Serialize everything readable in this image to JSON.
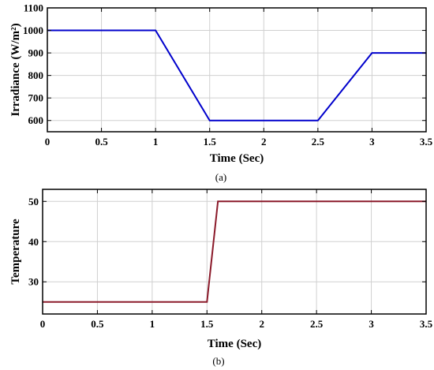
{
  "chart_data": [
    {
      "type": "line",
      "caption": "(a)",
      "xlabel": "Time (Sec)",
      "ylabel": "Irradiance (W/m²)",
      "xlim": [
        0,
        3.5
      ],
      "ylim": [
        550,
        1100
      ],
      "xticks": [
        0,
        0.5,
        1,
        1.5,
        2,
        2.5,
        3,
        3.5
      ],
      "xtick_labels": [
        "0",
        "0.5",
        "1",
        "1.5",
        "2",
        "2.5",
        "3",
        "3.5"
      ],
      "yticks": [
        600,
        700,
        800,
        900,
        1000,
        1100
      ],
      "ytick_labels": [
        "600",
        "700",
        "800",
        "900",
        "1000",
        "1100"
      ],
      "grid": true,
      "color": "#0000cc",
      "series": [
        {
          "x": [
            0,
            1,
            1.5,
            2.5,
            3,
            3.5
          ],
          "y": [
            1000,
            1000,
            600,
            600,
            900,
            900
          ]
        }
      ]
    },
    {
      "type": "line",
      "caption": "(b)",
      "xlabel": "Time (Sec)",
      "ylabel": "Temperature",
      "xlim": [
        0,
        3.5
      ],
      "ylim": [
        22,
        53
      ],
      "xticks": [
        0,
        0.5,
        1,
        1.5,
        2,
        2.5,
        3,
        3.5
      ],
      "xtick_labels": [
        "0",
        "0.5",
        "1",
        "1.5",
        "2",
        "2.5",
        "3",
        "3.5"
      ],
      "yticks": [
        30,
        40,
        50
      ],
      "ytick_labels": [
        "30",
        "40",
        "50"
      ],
      "grid": true,
      "color": "#8b1a2a",
      "series": [
        {
          "x": [
            0,
            1.5,
            1.6,
            3.5
          ],
          "y": [
            25,
            25,
            50,
            50
          ]
        }
      ]
    }
  ]
}
